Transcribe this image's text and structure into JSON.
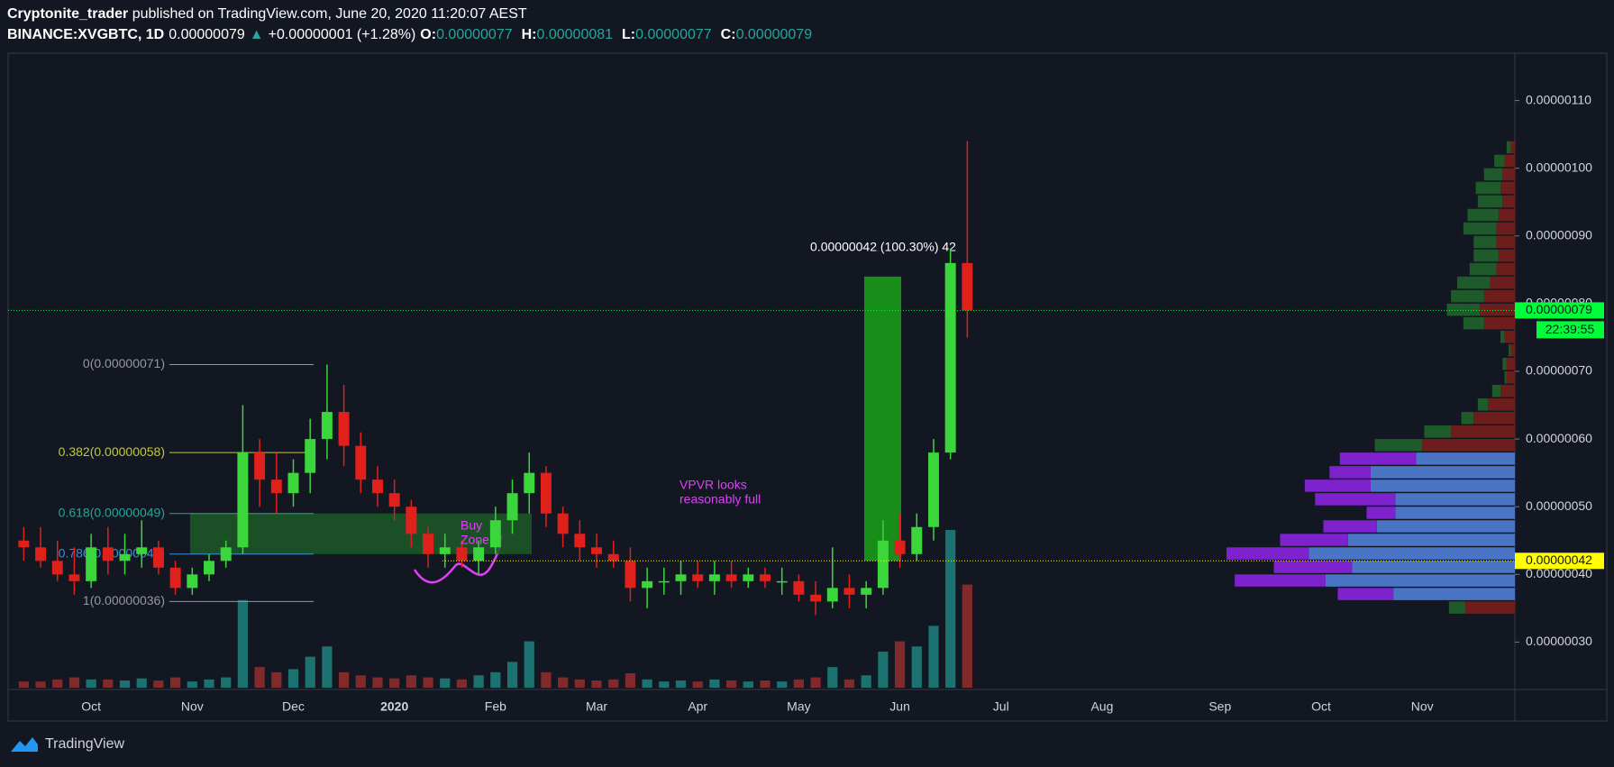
{
  "header": {
    "author": "Cryptonite_trader",
    "published": "published on TradingView.com, June 20, 2020 11:20:07 AEST",
    "symbol": "BINANCE:XVGBTC, 1D",
    "last": "0.00000079",
    "arrow": "▲",
    "change": "+0.00000001 (+1.28%)",
    "o_label": "O:",
    "o": "0.00000077",
    "h_label": "H:",
    "h": "0.00000081",
    "l_label": "L:",
    "l": "0.00000077",
    "c_label": "C:",
    "c": "0.00000079"
  },
  "footer": {
    "brand": "TradingView"
  },
  "chart_data": {
    "type": "candlestick",
    "categories": [
      null,
      null,
      null,
      null,
      "Oct",
      null,
      null,
      null,
      null,
      null,
      "Nov",
      null,
      null,
      null,
      null,
      null,
      "Dec",
      null,
      null,
      null,
      null,
      null,
      "2020",
      null,
      null,
      null,
      null,
      null,
      "Feb",
      null,
      null,
      null,
      null,
      null,
      "Mar",
      null,
      null,
      null,
      null,
      null,
      "Apr",
      null,
      null,
      null,
      null,
      null,
      "May",
      null,
      null,
      null,
      null,
      null,
      "Jun",
      null,
      null,
      null,
      null,
      null,
      "Jul",
      null,
      null,
      null,
      null,
      null,
      "Aug",
      null,
      null,
      null,
      null,
      null,
      null,
      "Sep",
      null,
      null,
      null,
      null,
      null,
      "Oct",
      null,
      null,
      null,
      null,
      null,
      "Nov",
      null,
      null,
      null,
      null,
      null
    ],
    "open": [
      4.5e-07,
      4.4e-07,
      4.2e-07,
      4e-07,
      3.9e-07,
      4.4e-07,
      4.2e-07,
      4.3e-07,
      4.4e-07,
      4.1e-07,
      3.8e-07,
      4e-07,
      4.2e-07,
      4.4e-07,
      5.8e-07,
      5.4e-07,
      5.2e-07,
      5.5e-07,
      6e-07,
      6.4e-07,
      5.9e-07,
      5.4e-07,
      5.2e-07,
      5e-07,
      4.6e-07,
      4.3e-07,
      4.4e-07,
      4.2e-07,
      4.4e-07,
      4.8e-07,
      5.2e-07,
      5.5e-07,
      4.9e-07,
      4.6e-07,
      4.4e-07,
      4.3e-07,
      4.2e-07,
      3.8e-07,
      3.9e-07,
      3.9e-07,
      4e-07,
      3.9e-07,
      4e-07,
      3.9e-07,
      4e-07,
      3.9e-07,
      3.9e-07,
      3.7e-07,
      3.6e-07,
      3.8e-07,
      3.7e-07,
      3.8e-07,
      4.5e-07,
      4.3e-07,
      4.7e-07,
      5.8e-07,
      8.6e-07,
      null,
      null,
      null,
      null,
      null,
      null,
      null,
      null,
      null,
      null,
      null,
      null,
      null,
      null,
      null,
      null,
      null,
      null,
      null,
      null,
      null,
      null,
      null,
      null,
      null,
      null,
      null,
      null,
      null,
      null,
      null,
      null
    ],
    "high": [
      4.7e-07,
      4.7e-07,
      4.5e-07,
      4.4e-07,
      4.6e-07,
      4.7e-07,
      4.6e-07,
      4.8e-07,
      4.5e-07,
      4.2e-07,
      4.1e-07,
      4.3e-07,
      4.5e-07,
      6.5e-07,
      6e-07,
      5.8e-07,
      5.7e-07,
      6.3e-07,
      7.1e-07,
      6.8e-07,
      6.1e-07,
      5.6e-07,
      5.4e-07,
      5.1e-07,
      4.7e-07,
      4.6e-07,
      4.5e-07,
      4.5e-07,
      5e-07,
      5.4e-07,
      5.8e-07,
      5.6e-07,
      5e-07,
      4.8e-07,
      4.6e-07,
      4.5e-07,
      4.4e-07,
      4.1e-07,
      4.1e-07,
      4.2e-07,
      4.2e-07,
      4.2e-07,
      4.2e-07,
      4.1e-07,
      4.1e-07,
      4.1e-07,
      4e-07,
      3.9e-07,
      4.4e-07,
      4e-07,
      3.9e-07,
      4.8e-07,
      4.9e-07,
      4.9e-07,
      6e-07,
      8.8e-07,
      1.04e-06,
      null,
      null,
      null,
      null,
      null,
      null,
      null,
      null,
      null,
      null,
      null,
      null,
      null,
      null,
      null,
      null,
      null,
      null,
      null,
      null,
      null,
      null,
      null,
      null,
      null,
      null,
      null,
      null,
      null,
      null,
      null,
      null
    ],
    "low": [
      4.2e-07,
      4.1e-07,
      3.9e-07,
      3.7e-07,
      3.8e-07,
      4e-07,
      4e-07,
      4.1e-07,
      4e-07,
      3.7e-07,
      3.7e-07,
      3.9e-07,
      4.1e-07,
      4.3e-07,
      5e-07,
      4.9e-07,
      5e-07,
      5.2e-07,
      5.7e-07,
      5.6e-07,
      5.2e-07,
      5e-07,
      4.8e-07,
      4.4e-07,
      4.1e-07,
      4.1e-07,
      4.1e-07,
      4e-07,
      4.3e-07,
      4.6e-07,
      4.9e-07,
      4.7e-07,
      4.4e-07,
      4.2e-07,
      4.1e-07,
      4.1e-07,
      3.6e-07,
      3.5e-07,
      3.7e-07,
      3.7e-07,
      3.8e-07,
      3.7e-07,
      3.8e-07,
      3.8e-07,
      3.8e-07,
      3.7e-07,
      3.6e-07,
      3.4e-07,
      3.5e-07,
      3.5e-07,
      3.5e-07,
      3.7e-07,
      4.1e-07,
      4.2e-07,
      4.5e-07,
      5.7e-07,
      7.5e-07,
      null,
      null,
      null,
      null,
      null,
      null,
      null,
      null,
      null,
      null,
      null,
      null,
      null,
      null,
      null,
      null,
      null,
      null,
      null,
      null,
      null,
      null,
      null,
      null,
      null,
      null,
      null,
      null,
      null,
      null,
      null,
      null
    ],
    "close": [
      4.4e-07,
      4.2e-07,
      4e-07,
      3.9e-07,
      4.4e-07,
      4.2e-07,
      4.3e-07,
      4.4e-07,
      4.1e-07,
      3.8e-07,
      4e-07,
      4.2e-07,
      4.4e-07,
      5.8e-07,
      5.4e-07,
      5.2e-07,
      5.5e-07,
      6e-07,
      6.4e-07,
      5.9e-07,
      5.4e-07,
      5.2e-07,
      5e-07,
      4.6e-07,
      4.3e-07,
      4.4e-07,
      4.2e-07,
      4.4e-07,
      4.8e-07,
      5.2e-07,
      5.5e-07,
      4.9e-07,
      4.6e-07,
      4.4e-07,
      4.3e-07,
      4.2e-07,
      3.8e-07,
      3.9e-07,
      3.9e-07,
      4e-07,
      3.9e-07,
      4e-07,
      3.9e-07,
      4e-07,
      3.9e-07,
      3.9e-07,
      3.7e-07,
      3.6e-07,
      3.8e-07,
      3.7e-07,
      3.8e-07,
      4.5e-07,
      4.3e-07,
      4.7e-07,
      5.8e-07,
      8.6e-07,
      7.9e-07,
      null,
      null,
      null,
      null,
      null,
      null,
      null,
      null,
      null,
      null,
      null,
      null,
      null,
      null,
      null,
      null,
      null,
      null,
      null,
      null,
      null,
      null,
      null,
      null,
      null,
      null,
      null,
      null,
      null,
      null,
      null,
      null
    ],
    "volume": [
      6,
      6,
      8,
      10,
      8,
      8,
      7,
      9,
      7,
      10,
      6,
      8,
      10,
      85,
      20,
      15,
      18,
      30,
      40,
      15,
      12,
      10,
      9,
      12,
      10,
      9,
      8,
      12,
      15,
      25,
      45,
      15,
      10,
      8,
      7,
      8,
      14,
      8,
      6,
      7,
      6,
      8,
      7,
      6,
      7,
      6,
      8,
      10,
      20,
      8,
      12,
      35,
      45,
      40,
      60,
      153,
      100,
      null,
      null,
      null,
      null,
      null,
      null,
      null,
      null,
      null,
      null,
      null,
      null,
      null,
      null,
      null,
      null,
      null,
      null,
      null,
      null,
      null,
      null,
      null,
      null,
      null,
      null,
      null,
      null,
      null,
      null,
      null,
      null
    ],
    "up_color": "#3bd63b",
    "down_color": "#e0201b",
    "volume_up_color": "#1f8a84",
    "volume_down_color": "#9c2f2f",
    "ylim": [
      2.3e-07,
      1.17e-06
    ],
    "yticks": [
      {
        "value": 1.1e-06,
        "label": "0.00000110"
      },
      {
        "value": 1e-06,
        "label": "0.00000100"
      },
      {
        "value": 9e-07,
        "label": "0.00000090"
      },
      {
        "value": 8e-07,
        "label": "0.00000080"
      },
      {
        "value": 7e-07,
        "label": "0.00000070"
      },
      {
        "value": 6e-07,
        "label": "0.00000060"
      },
      {
        "value": 5e-07,
        "label": "0.00000050"
      },
      {
        "value": 4e-07,
        "label": "0.00000040"
      },
      {
        "value": 3e-07,
        "label": "0.00000030"
      }
    ],
    "grid": false,
    "last_price": {
      "value": 7.9e-07,
      "label": "0.00000079",
      "countdown": "22:39:55",
      "color": "#00ff3a"
    },
    "marker_line": {
      "value": 4.2e-07,
      "label": "0.00000042",
      "color": "#ffff00"
    },
    "fib": [
      {
        "value": 7.1e-07,
        "label": "0(0.00000071)",
        "color": "#9598a1"
      },
      {
        "value": 5.8e-07,
        "label": "0.382(0.00000058)",
        "color": "#c0ca33"
      },
      {
        "value": 4.9e-07,
        "label": "0.618(0.00000049)",
        "color": "#26a69a"
      },
      {
        "value": 4.3e-07,
        "label": "0.786(0.00000043)",
        "color": "#3a8fd9"
      },
      {
        "value": 3.6e-07,
        "label": "1(0.00000036)",
        "color": "#9598a1"
      }
    ],
    "measure": {
      "label": "0.00000042 (100.30%) 42",
      "from": 4.2e-07,
      "change": 4.2e-07,
      "color": "#1a9a1a"
    },
    "buy_zone": [
      "Buy",
      "Zone"
    ],
    "note": [
      "VPVR looks",
      "reasonably full"
    ],
    "volume_profile": {
      "levels": [
        3.4e-07,
        3.6e-07,
        3.8e-07,
        4e-07,
        4.2e-07,
        4.4e-07,
        4.6e-07,
        4.8e-07,
        5e-07,
        5.2e-07,
        5.4e-07,
        5.6e-07,
        5.8e-07,
        6e-07,
        6.2e-07,
        6.4e-07,
        6.6e-07,
        6.8e-07,
        7e-07,
        7.2e-07,
        7.4e-07,
        7.6e-07,
        7.8e-07,
        8e-07,
        8.2e-07,
        8.4e-07,
        8.6e-07,
        8.8e-07,
        9e-07,
        9.2e-07,
        9.4e-07,
        9.6e-07,
        9.8e-07,
        1e-06,
        1.02e-06
      ],
      "near": [
        48,
        118,
        184,
        158,
        200,
        162,
        134,
        116,
        116,
        140,
        140,
        96,
        90,
        62,
        40,
        26,
        14,
        8,
        8,
        4,
        10,
        30,
        34,
        30,
        24,
        18,
        16,
        18,
        18,
        16,
        12,
        14,
        12,
        10,
        4
      ],
      "far": [
        16,
        54,
        88,
        76,
        80,
        66,
        52,
        28,
        78,
        64,
        40,
        74,
        46,
        26,
        12,
        10,
        8,
        2,
        4,
        2,
        4,
        20,
        32,
        32,
        32,
        26,
        24,
        22,
        32,
        30,
        24,
        24,
        18,
        10,
        4
      ],
      "value_area": [
        3.6e-07,
        5.8e-07
      ],
      "va_near_color": "#4a74c4",
      "va_far_color": "#7d22cc",
      "near_color": "#6e1d1d",
      "far_color": "#1f5a2b"
    }
  }
}
